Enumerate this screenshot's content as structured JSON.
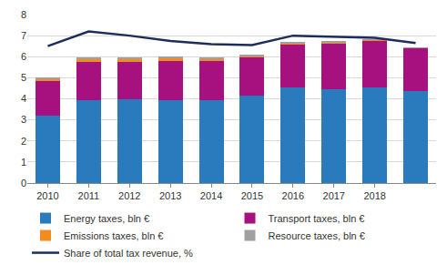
{
  "chart_data": {
    "type": "bar",
    "stacked": true,
    "categories": [
      "2010",
      "2011",
      "2012",
      "2013",
      "2014",
      "2015",
      "2016",
      "2017",
      "2018",
      null
    ],
    "series": [
      {
        "name": "Energy taxes, bln €",
        "color": "#2a7bbd",
        "type": "bar",
        "values": [
          3.2,
          3.95,
          4.0,
          3.95,
          3.95,
          4.15,
          4.55,
          4.45,
          4.55,
          4.35
        ]
      },
      {
        "name": "Transport taxes, bln €",
        "color": "#a6117f",
        "type": "bar",
        "values": [
          1.65,
          1.8,
          1.75,
          1.85,
          1.85,
          1.8,
          2.05,
          2.15,
          2.2,
          2.05
        ]
      },
      {
        "name": "Emissions taxes, bln €",
        "color": "#f28c1e",
        "type": "bar",
        "values": [
          0.1,
          0.15,
          0.15,
          0.15,
          0.1,
          0.1,
          0.05,
          0.1,
          0.05,
          0.02
        ]
      },
      {
        "name": "Resource taxes, bln €",
        "color": "#a0a0a0",
        "type": "bar",
        "values": [
          0.03,
          0.03,
          0.03,
          0.03,
          0.03,
          0.03,
          0.03,
          0.03,
          0.03,
          0.02
        ]
      },
      {
        "name": "Share of total tax revenue, %",
        "color": "#1f2d5c",
        "type": "line",
        "values": [
          6.5,
          7.2,
          7.0,
          6.75,
          6.6,
          6.55,
          7.0,
          6.95,
          6.9,
          6.65
        ]
      }
    ],
    "ylim": [
      0,
      8
    ],
    "yticks": [
      0,
      1,
      2,
      3,
      4,
      5,
      6,
      7,
      8
    ],
    "grid": true,
    "legend": "bottom"
  }
}
